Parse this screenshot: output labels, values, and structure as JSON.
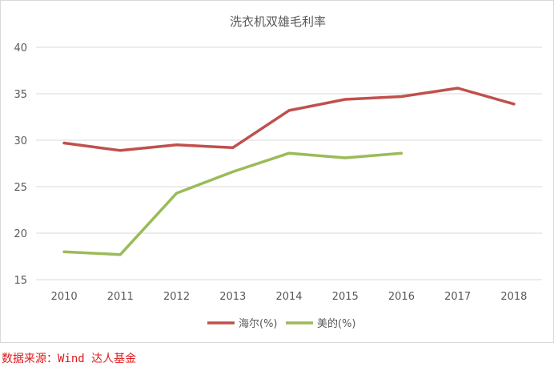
{
  "chart_data": {
    "type": "line",
    "title": "洗衣机双雄毛利率",
    "x": [
      "2010",
      "2011",
      "2012",
      "2013",
      "2014",
      "2015",
      "2016",
      "2017",
      "2018"
    ],
    "y_ticks": [
      "40",
      "35",
      "30",
      "25",
      "20",
      "15"
    ],
    "ylim": [
      15,
      40
    ],
    "grid": "horizontal",
    "legend_position": "bottom",
    "series": [
      {
        "name": "海尔(%)",
        "color": "#c0504d",
        "values": [
          29.7,
          28.9,
          29.5,
          29.2,
          33.2,
          34.4,
          34.7,
          35.6,
          33.9
        ]
      },
      {
        "name": "美的(%)",
        "color": "#9bbb59",
        "values": [
          18.0,
          17.7,
          24.3,
          26.6,
          28.6,
          28.1,
          28.6,
          null,
          null
        ]
      }
    ]
  },
  "footer": {
    "source": "数据来源：Wind 达人基金"
  }
}
